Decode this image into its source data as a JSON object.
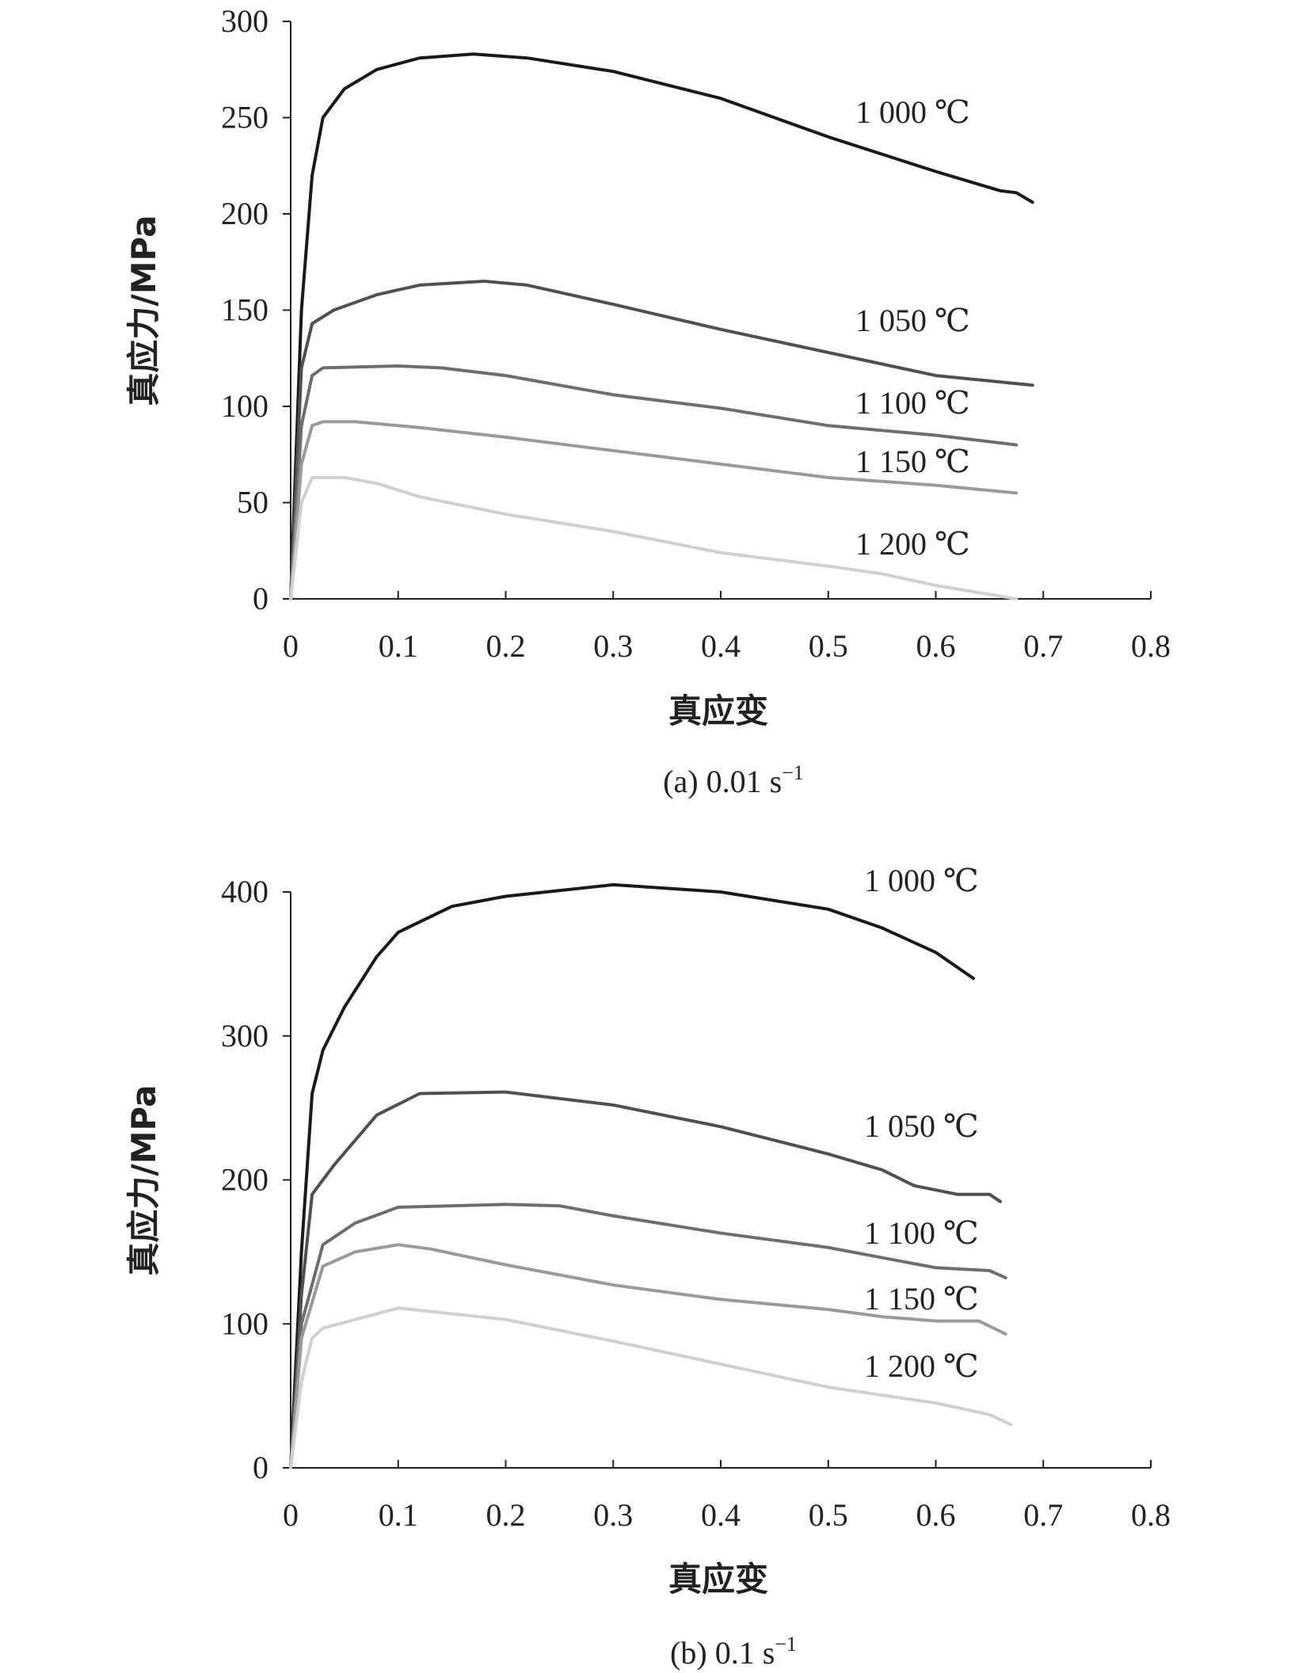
{
  "chart_data": [
    {
      "type": "line",
      "caption": "(a)  0.01 s",
      "caption_sup": "−1",
      "xlabel": "真应变",
      "ylabel": "真应力/MPa",
      "xlim": [
        0,
        0.8
      ],
      "ylim": [
        0,
        300
      ],
      "xticks": [
        "0",
        "0.1",
        "0.2",
        "0.3",
        "0.4",
        "0.5",
        "0.6",
        "0.7",
        "0.8"
      ],
      "yticks": [
        "0",
        "50",
        "100",
        "150",
        "200",
        "250",
        "300"
      ],
      "ytick_values": [
        0,
        50,
        100,
        150,
        200,
        250,
        300
      ],
      "grid": false,
      "series": [
        {
          "name": "1 000 ℃",
          "color": "#1a1a1a",
          "x": [
            0,
            0.01,
            0.02,
            0.03,
            0.05,
            0.08,
            0.12,
            0.17,
            0.22,
            0.3,
            0.4,
            0.5,
            0.6,
            0.66,
            0.675,
            0.69
          ],
          "y": [
            0,
            150,
            220,
            250,
            265,
            275,
            281,
            283,
            281,
            274,
            260,
            240,
            222,
            212,
            211,
            206
          ]
        },
        {
          "name": "1 050 ℃",
          "color": "#505050",
          "x": [
            0,
            0.01,
            0.02,
            0.04,
            0.08,
            0.12,
            0.18,
            0.22,
            0.3,
            0.4,
            0.5,
            0.6,
            0.69
          ],
          "y": [
            0,
            120,
            143,
            150,
            158,
            163,
            165,
            163,
            153,
            140,
            128,
            116,
            111
          ]
        },
        {
          "name": "1 100 ℃",
          "color": "#6e6e6e",
          "x": [
            0,
            0.01,
            0.02,
            0.03,
            0.1,
            0.14,
            0.2,
            0.3,
            0.4,
            0.5,
            0.6,
            0.675
          ],
          "y": [
            0,
            90,
            116,
            120,
            121,
            120,
            116,
            106,
            99,
            90,
            85,
            80
          ]
        },
        {
          "name": "1 150 ℃",
          "color": "#9a9a9a",
          "x": [
            0,
            0.01,
            0.02,
            0.03,
            0.06,
            0.12,
            0.2,
            0.3,
            0.4,
            0.5,
            0.6,
            0.675
          ],
          "y": [
            0,
            70,
            90,
            92,
            92,
            89,
            84,
            77,
            70,
            63,
            59,
            55
          ]
        },
        {
          "name": "1 200 ℃",
          "color": "#d0d0d0",
          "x": [
            0,
            0.01,
            0.02,
            0.05,
            0.08,
            0.12,
            0.2,
            0.3,
            0.4,
            0.5,
            0.55,
            0.6,
            0.675
          ],
          "y": [
            0,
            50,
            63,
            63,
            60,
            53,
            44,
            35,
            24,
            17,
            13,
            7,
            0
          ]
        }
      ]
    },
    {
      "type": "line",
      "caption": "(b)  0.1 s",
      "caption_sup": "−1",
      "xlabel": "真应变",
      "ylabel": "真应力/MPa",
      "xlim": [
        0,
        0.8
      ],
      "ylim": [
        0,
        400
      ],
      "xticks": [
        "0",
        "0.1",
        "0.2",
        "0.3",
        "0.4",
        "0.5",
        "0.6",
        "0.7",
        "0.8"
      ],
      "yticks": [
        "0",
        "100",
        "200",
        "300",
        "400"
      ],
      "ytick_values": [
        0,
        100,
        200,
        300,
        400
      ],
      "grid": false,
      "series": [
        {
          "name": "1 000 ℃",
          "color": "#1a1a1a",
          "x": [
            0,
            0.01,
            0.02,
            0.03,
            0.05,
            0.08,
            0.1,
            0.15,
            0.2,
            0.3,
            0.4,
            0.5,
            0.55,
            0.6,
            0.635
          ],
          "y": [
            0,
            150,
            260,
            290,
            320,
            355,
            372,
            390,
            397,
            405,
            400,
            388,
            375,
            358,
            340
          ]
        },
        {
          "name": "1 050 ℃",
          "color": "#505050",
          "x": [
            0,
            0.01,
            0.02,
            0.04,
            0.08,
            0.12,
            0.2,
            0.3,
            0.4,
            0.5,
            0.55,
            0.58,
            0.62,
            0.65,
            0.66
          ],
          "y": [
            0,
            120,
            190,
            210,
            245,
            260,
            261,
            252,
            237,
            218,
            207,
            196,
            190,
            190,
            185
          ]
        },
        {
          "name": "1 100 ℃",
          "color": "#6e6e6e",
          "x": [
            0,
            0.01,
            0.03,
            0.06,
            0.1,
            0.2,
            0.25,
            0.3,
            0.4,
            0.5,
            0.6,
            0.65,
            0.665
          ],
          "y": [
            0,
            100,
            155,
            170,
            181,
            183,
            182,
            175,
            163,
            153,
            139,
            137,
            132
          ]
        },
        {
          "name": "1 150 ℃",
          "color": "#9a9a9a",
          "x": [
            0,
            0.01,
            0.03,
            0.06,
            0.1,
            0.13,
            0.2,
            0.3,
            0.4,
            0.5,
            0.55,
            0.6,
            0.64,
            0.665
          ],
          "y": [
            0,
            90,
            140,
            150,
            155,
            152,
            141,
            127,
            117,
            110,
            105,
            102,
            102,
            93
          ]
        },
        {
          "name": "1 200 ℃",
          "color": "#d0d0d0",
          "x": [
            0,
            0.01,
            0.02,
            0.03,
            0.06,
            0.1,
            0.2,
            0.3,
            0.4,
            0.5,
            0.6,
            0.65,
            0.67
          ],
          "y": [
            0,
            60,
            90,
            97,
            103,
            111,
            103,
            88,
            72,
            56,
            45,
            37,
            30
          ]
        }
      ]
    }
  ]
}
